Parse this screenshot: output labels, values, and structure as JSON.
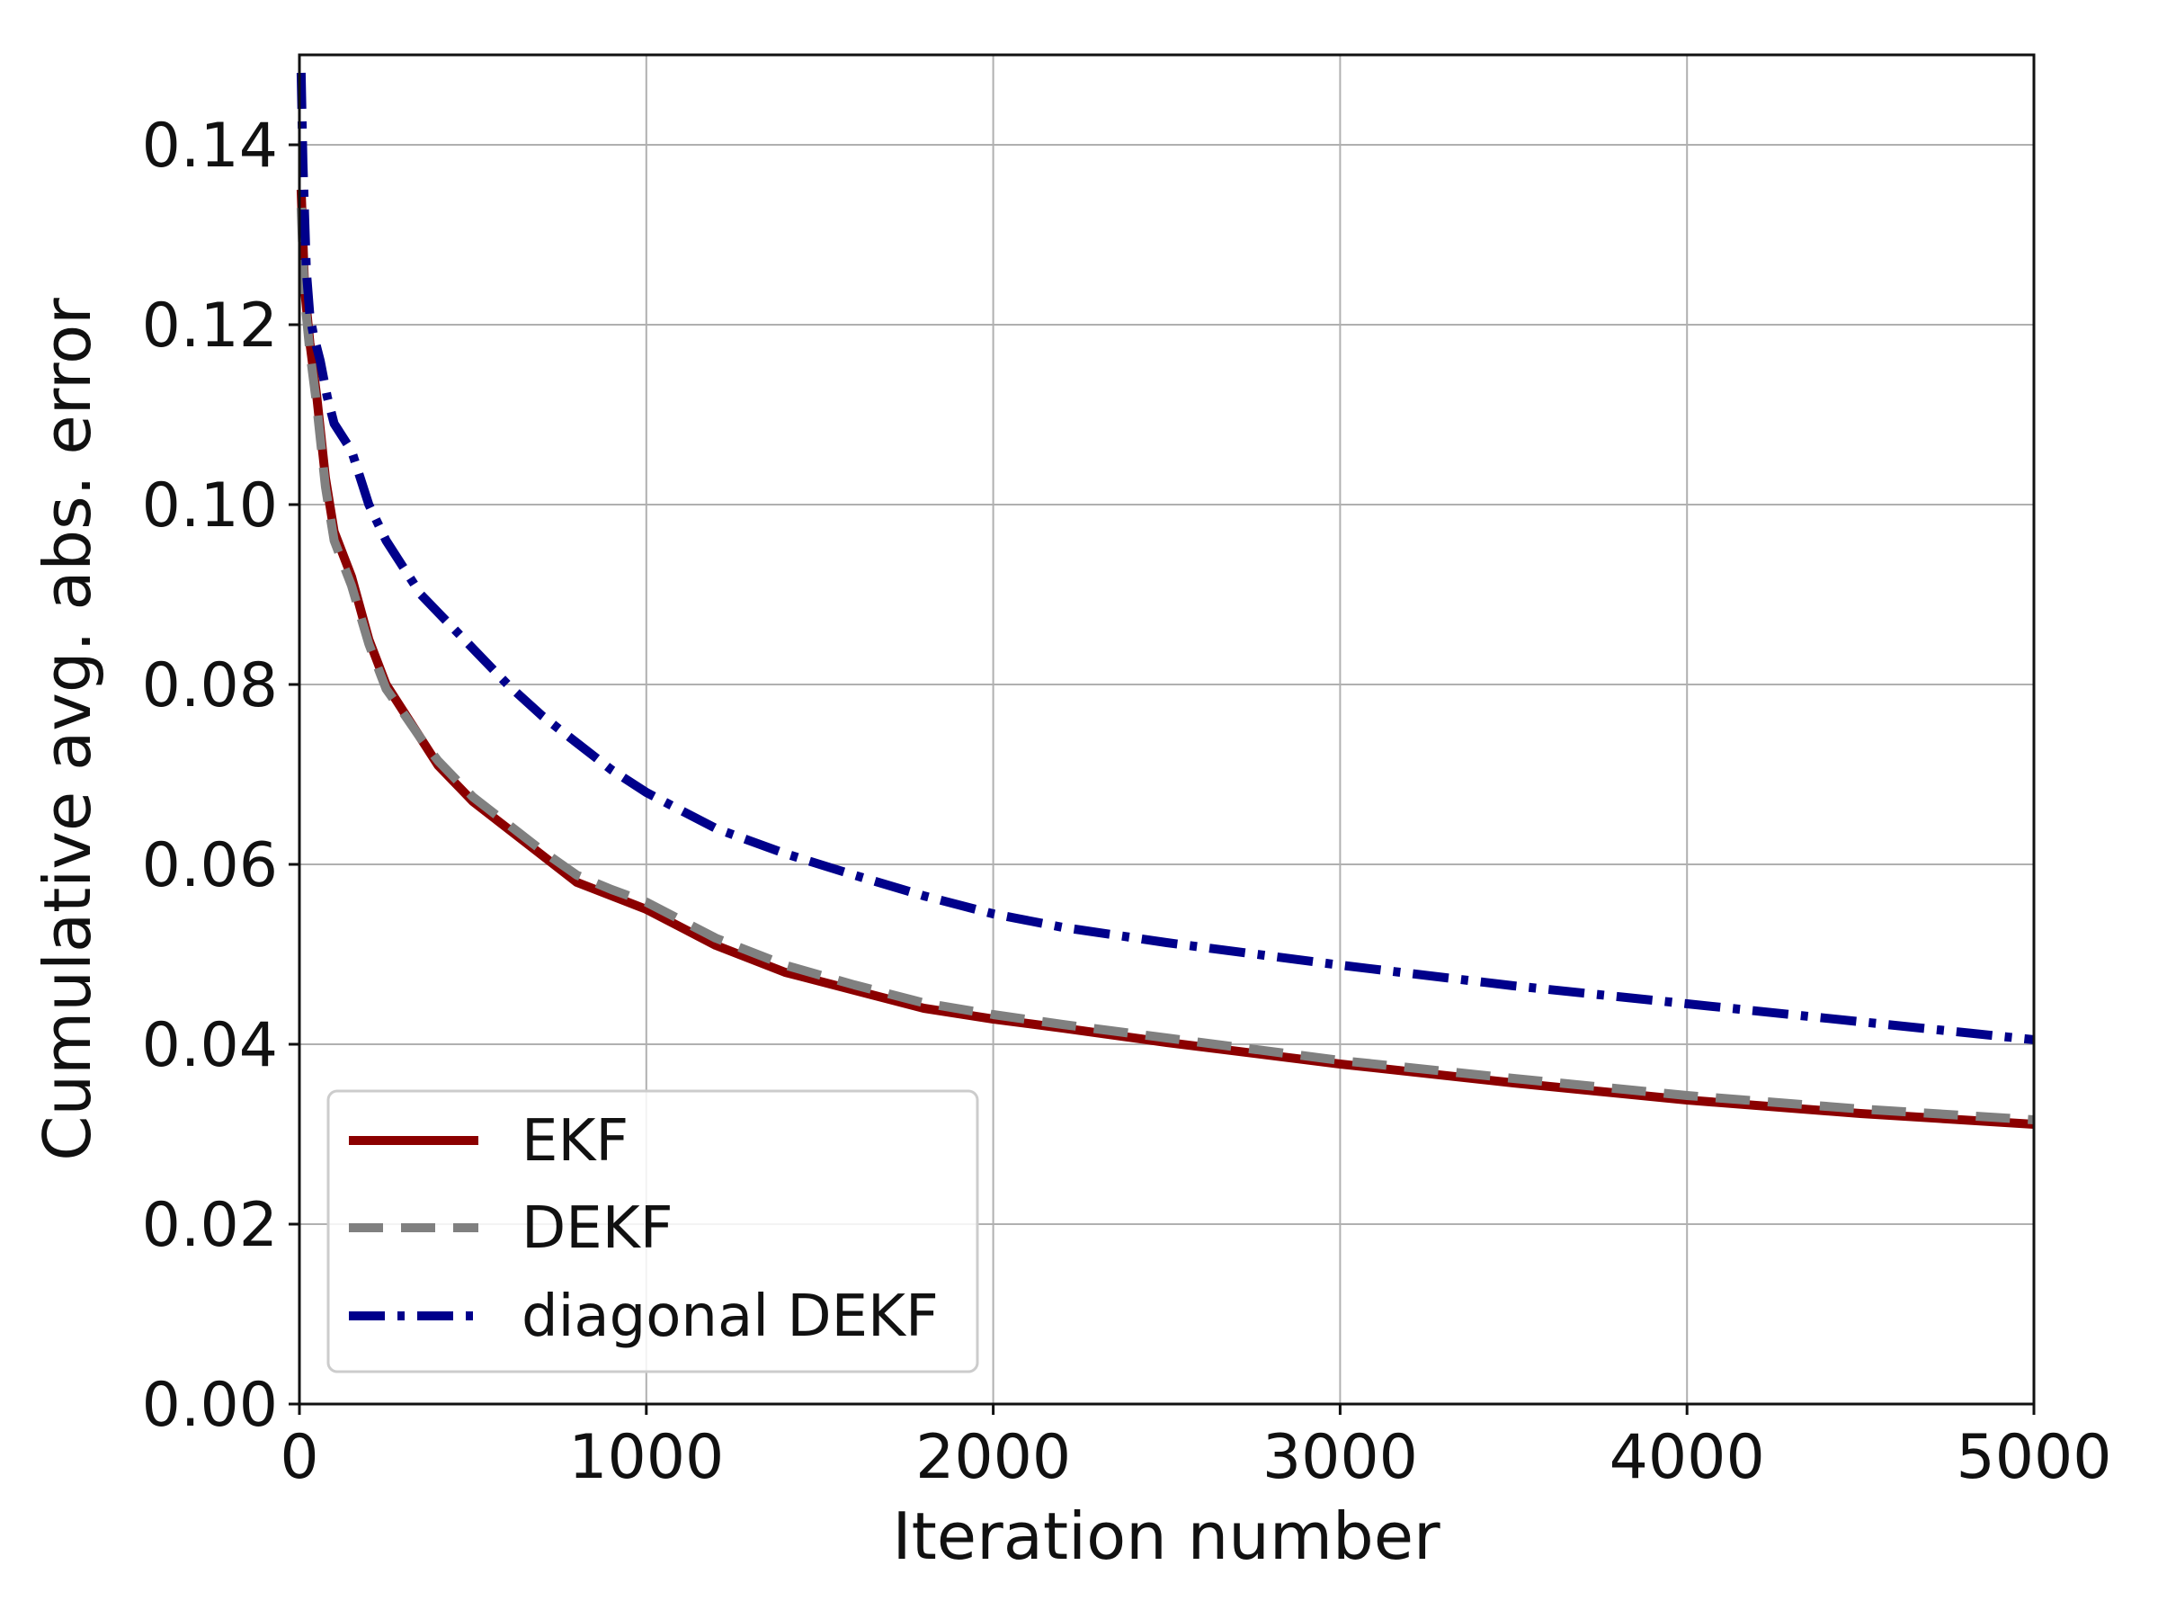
{
  "chart_data": {
    "type": "line",
    "title": "",
    "xlabel": "Iteration number",
    "ylabel": "Cumulative avg. abs. error",
    "xlim": [
      0,
      5000
    ],
    "ylim": [
      0,
      0.15
    ],
    "xticks": [
      0,
      1000,
      2000,
      3000,
      4000,
      5000
    ],
    "xtick_labels": [
      "0",
      "1000",
      "2000",
      "3000",
      "4000",
      "5000"
    ],
    "yticks": [
      0,
      0.02,
      0.04,
      0.06,
      0.08,
      0.1,
      0.12,
      0.14
    ],
    "ytick_labels": [
      "0.00",
      "0.02",
      "0.04",
      "0.06",
      "0.08",
      "0.10",
      "0.12",
      "0.14"
    ],
    "grid": true,
    "legend_position": "lower-left",
    "series": [
      {
        "name": "EKF",
        "color": "#8b0000",
        "style": "solid",
        "x": [
          5,
          15,
          30,
          50,
          75,
          100,
          150,
          200,
          250,
          300,
          350,
          400,
          450,
          500,
          600,
          700,
          800,
          900,
          1000,
          1200,
          1400,
          1600,
          1800,
          2000,
          2200,
          2500,
          3000,
          3500,
          4000,
          4500,
          5000
        ],
        "y": [
          0.135,
          0.124,
          0.118,
          0.112,
          0.103,
          0.097,
          0.092,
          0.085,
          0.08,
          0.077,
          0.074,
          0.071,
          0.069,
          0.067,
          0.064,
          0.061,
          0.058,
          0.0565,
          0.055,
          0.051,
          0.048,
          0.046,
          0.044,
          0.0428,
          0.0418,
          0.0402,
          0.0378,
          0.0357,
          0.0338,
          0.0323,
          0.0311
        ]
      },
      {
        "name": "DEKF",
        "color": "#808080",
        "style": "dashed",
        "x": [
          5,
          15,
          30,
          50,
          75,
          100,
          150,
          200,
          250,
          300,
          350,
          400,
          450,
          500,
          600,
          700,
          800,
          900,
          1000,
          1200,
          1400,
          1600,
          1800,
          2000,
          2200,
          2500,
          3000,
          3500,
          4000,
          4500,
          5000
        ],
        "y": [
          0.133,
          0.123,
          0.117,
          0.111,
          0.102,
          0.096,
          0.091,
          0.0845,
          0.0795,
          0.0768,
          0.074,
          0.0715,
          0.0695,
          0.0675,
          0.0645,
          0.0615,
          0.0588,
          0.0572,
          0.0558,
          0.0518,
          0.0488,
          0.0466,
          0.0446,
          0.0433,
          0.0422,
          0.0407,
          0.0382,
          0.0362,
          0.0343,
          0.0328,
          0.0316
        ]
      },
      {
        "name": "diagonal DEKF",
        "color": "#00008b",
        "style": "dashdot",
        "x": [
          5,
          10,
          20,
          30,
          40,
          60,
          80,
          100,
          150,
          200,
          250,
          300,
          350,
          400,
          450,
          500,
          600,
          700,
          800,
          900,
          1000,
          1200,
          1400,
          1600,
          1800,
          2000,
          2200,
          2500,
          3000,
          3500,
          4000,
          4500,
          5000
        ],
        "y": [
          0.148,
          0.138,
          0.126,
          0.121,
          0.119,
          0.116,
          0.112,
          0.109,
          0.106,
          0.1,
          0.096,
          0.093,
          0.09,
          0.088,
          0.086,
          0.084,
          0.08,
          0.0765,
          0.0735,
          0.0705,
          0.068,
          0.064,
          0.0612,
          0.0588,
          0.0565,
          0.0545,
          0.053,
          0.0513,
          0.0488,
          0.0465,
          0.0445,
          0.0425,
          0.0405
        ]
      }
    ]
  }
}
